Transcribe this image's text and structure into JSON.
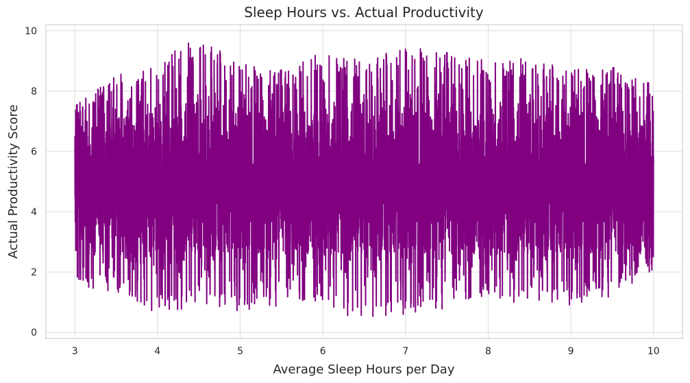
{
  "chart_data": {
    "type": "line",
    "title": "Sleep Hours vs. Actual Productivity",
    "xlabel": "Average Sleep Hours per Day",
    "ylabel": "Actual Productivity Score",
    "xlim": [
      2.65,
      10.35
    ],
    "ylim": [
      -0.2,
      10.2
    ],
    "xticks": [
      3,
      4,
      5,
      6,
      7,
      8,
      9,
      10
    ],
    "yticks": [
      0,
      2,
      4,
      6,
      8,
      10
    ],
    "grid": true,
    "legend": "none",
    "series": [
      {
        "color": "#800080",
        "x": [
          3.0,
          3.5,
          4.0,
          4.5,
          5.0,
          5.5,
          6.0,
          6.5,
          7.0,
          7.5,
          8.0,
          8.5,
          9.0,
          9.5,
          10.0
        ],
        "y_min": [
          1.6,
          1.3,
          0.6,
          0.8,
          0.7,
          0.9,
          0.8,
          0.3,
          0.6,
          0.8,
          1.0,
          0.9,
          0.9,
          1.2,
          2.1
        ],
        "y_max": [
          7.5,
          8.5,
          9.0,
          9.8,
          8.9,
          8.7,
          9.3,
          9.0,
          9.5,
          9.3,
          9.0,
          9.1,
          8.7,
          8.8,
          8.2
        ],
        "y_mean": [
          5.0,
          5.0,
          5.0,
          5.0,
          5.0,
          5.0,
          5.0,
          5.0,
          5.0,
          5.0,
          5.0,
          5.0,
          5.0,
          5.0,
          5.0
        ]
      }
    ]
  }
}
